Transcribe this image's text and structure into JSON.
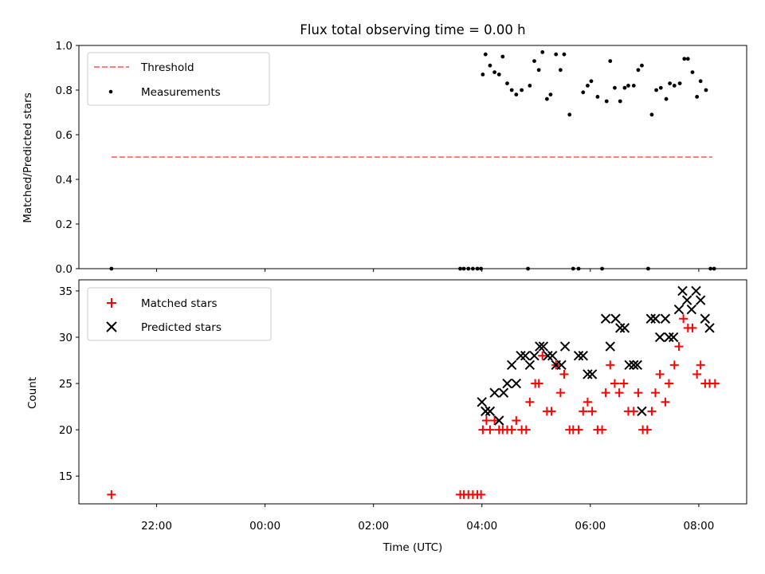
{
  "chart_data": [
    {
      "type": "scatter",
      "title": "Flux total observing time = 0.00 h",
      "ylabel": "Matched/Predicted stars",
      "xlabel": "",
      "ylim": [
        0,
        1.0
      ],
      "xlim": [
        "20:34",
        "08:53"
      ],
      "yticks": [
        0.0,
        0.2,
        0.4,
        0.6,
        0.8,
        1.0
      ],
      "ytick_labels": [
        "0.0",
        "0.2",
        "0.4",
        "0.6",
        "0.8",
        "1.0"
      ],
      "legend_position": "top-left",
      "threshold": {
        "name": "Threshold",
        "value": 0.5,
        "x_range": [
          "21:10",
          "08:15"
        ],
        "color": "#ff7f7f",
        "style": "dashed"
      },
      "series": [
        {
          "name": "Measurements",
          "color": "#000000",
          "marker": "dot",
          "points": [
            [
              "21:10",
              0.0
            ],
            [
              "03:36",
              0.0
            ],
            [
              "03:40",
              0.0
            ],
            [
              "03:45",
              0.0
            ],
            [
              "03:50",
              0.0
            ],
            [
              "03:55",
              0.0
            ],
            [
              "03:59",
              0.0
            ],
            [
              "04:01",
              0.87
            ],
            [
              "04:04",
              0.96
            ],
            [
              "04:09",
              0.91
            ],
            [
              "04:14",
              0.88
            ],
            [
              "04:19",
              0.87
            ],
            [
              "04:23",
              0.95
            ],
            [
              "04:28",
              0.83
            ],
            [
              "04:33",
              0.8
            ],
            [
              "04:38",
              0.78
            ],
            [
              "04:44",
              0.8
            ],
            [
              "04:51",
              0.0
            ],
            [
              "04:53",
              0.82
            ],
            [
              "04:58",
              0.93
            ],
            [
              "05:03",
              0.89
            ],
            [
              "05:07",
              0.97
            ],
            [
              "05:12",
              0.76
            ],
            [
              "05:16",
              0.78
            ],
            [
              "05:22",
              0.96
            ],
            [
              "05:27",
              0.89
            ],
            [
              "05:31",
              0.96
            ],
            [
              "05:37",
              0.69
            ],
            [
              "05:41",
              0.0
            ],
            [
              "05:47",
              0.0
            ],
            [
              "05:52",
              0.79
            ],
            [
              "05:57",
              0.82
            ],
            [
              "06:01",
              0.84
            ],
            [
              "06:08",
              0.77
            ],
            [
              "06:13",
              0.0
            ],
            [
              "06:18",
              0.75
            ],
            [
              "06:22",
              0.93
            ],
            [
              "06:27",
              0.81
            ],
            [
              "06:33",
              0.75
            ],
            [
              "06:38",
              0.81
            ],
            [
              "06:42",
              0.82
            ],
            [
              "06:48",
              0.82
            ],
            [
              "06:53",
              0.89
            ],
            [
              "06:57",
              0.91
            ],
            [
              "07:04",
              0.0
            ],
            [
              "07:08",
              0.69
            ],
            [
              "07:13",
              0.8
            ],
            [
              "07:18",
              0.81
            ],
            [
              "07:24",
              0.76
            ],
            [
              "07:28",
              0.83
            ],
            [
              "07:33",
              0.82
            ],
            [
              "07:39",
              0.83
            ],
            [
              "07:44",
              0.94
            ],
            [
              "07:48",
              0.94
            ],
            [
              "07:53",
              0.88
            ],
            [
              "07:58",
              0.77
            ],
            [
              "08:02",
              0.84
            ],
            [
              "08:08",
              0.8
            ],
            [
              "08:13",
              0.0
            ],
            [
              "08:17",
              0.0
            ]
          ]
        }
      ]
    },
    {
      "type": "scatter",
      "title": "",
      "ylabel": "Count",
      "xlabel": "Time (UTC)",
      "ylim": [
        12,
        36.2
      ],
      "xlim": [
        "20:34",
        "08:53"
      ],
      "yticks": [
        15,
        20,
        25,
        30,
        35
      ],
      "ytick_labels": [
        "15",
        "20",
        "25",
        "30",
        "35"
      ],
      "xticks": [
        "22:00",
        "00:00",
        "02:00",
        "04:00",
        "06:00",
        "08:00"
      ],
      "xtick_labels": [
        "22:00",
        "00:00",
        "02:00",
        "04:00",
        "06:00",
        "08:00"
      ],
      "legend_position": "top-left",
      "series": [
        {
          "name": "Matched stars",
          "color": "#ff0000",
          "marker": "plus",
          "points": [
            [
              "21:10",
              13
            ],
            [
              "03:36",
              13
            ],
            [
              "03:40",
              13
            ],
            [
              "03:45",
              13
            ],
            [
              "03:50",
              13
            ],
            [
              "03:55",
              13
            ],
            [
              "03:59",
              13
            ],
            [
              "04:01",
              20
            ],
            [
              "04:05",
              21
            ],
            [
              "04:09",
              20
            ],
            [
              "04:14",
              21
            ],
            [
              "04:19",
              20
            ],
            [
              "04:23",
              20
            ],
            [
              "04:28",
              20
            ],
            [
              "04:33",
              20
            ],
            [
              "04:38",
              21
            ],
            [
              "04:44",
              20
            ],
            [
              "04:49",
              20
            ],
            [
              "04:53",
              23
            ],
            [
              "04:59",
              25
            ],
            [
              "05:03",
              25
            ],
            [
              "05:07",
              28
            ],
            [
              "05:12",
              22
            ],
            [
              "05:17",
              22
            ],
            [
              "05:22",
              27
            ],
            [
              "05:27",
              24
            ],
            [
              "05:31",
              26
            ],
            [
              "05:37",
              20
            ],
            [
              "05:41",
              20
            ],
            [
              "05:47",
              20
            ],
            [
              "05:52",
              22
            ],
            [
              "05:57",
              23
            ],
            [
              "06:02",
              22
            ],
            [
              "06:08",
              20
            ],
            [
              "06:13",
              20
            ],
            [
              "06:17",
              24
            ],
            [
              "06:22",
              27
            ],
            [
              "06:27",
              25
            ],
            [
              "06:32",
              24
            ],
            [
              "06:37",
              25
            ],
            [
              "06:42",
              22
            ],
            [
              "06:48",
              22
            ],
            [
              "06:53",
              24
            ],
            [
              "06:58",
              20
            ],
            [
              "07:03",
              20
            ],
            [
              "07:08",
              22
            ],
            [
              "07:12",
              24
            ],
            [
              "07:17",
              26
            ],
            [
              "07:23",
              23
            ],
            [
              "07:27",
              25
            ],
            [
              "07:33",
              27
            ],
            [
              "07:38",
              29
            ],
            [
              "07:43",
              32
            ],
            [
              "07:48",
              31
            ],
            [
              "07:53",
              31
            ],
            [
              "07:58",
              26
            ],
            [
              "08:02",
              27
            ],
            [
              "08:07",
              25
            ],
            [
              "08:12",
              25
            ],
            [
              "08:18",
              25
            ]
          ]
        },
        {
          "name": "Predicted stars",
          "color": "#000000",
          "marker": "x",
          "points": [
            [
              "04:00",
              23
            ],
            [
              "04:04",
              22
            ],
            [
              "04:09",
              22
            ],
            [
              "04:14",
              24
            ],
            [
              "04:19",
              21
            ],
            [
              "04:24",
              24
            ],
            [
              "04:28",
              25
            ],
            [
              "04:33",
              27
            ],
            [
              "04:38",
              25
            ],
            [
              "04:43",
              28
            ],
            [
              "04:48",
              28
            ],
            [
              "04:53",
              27
            ],
            [
              "04:58",
              28
            ],
            [
              "05:04",
              29
            ],
            [
              "05:08",
              29
            ],
            [
              "05:13",
              28
            ],
            [
              "05:18",
              28
            ],
            [
              "05:22",
              27
            ],
            [
              "05:28",
              27
            ],
            [
              "05:32",
              29
            ],
            [
              "05:47",
              28
            ],
            [
              "05:52",
              28
            ],
            [
              "05:57",
              26
            ],
            [
              "06:02",
              26
            ],
            [
              "06:17",
              32
            ],
            [
              "06:22",
              29
            ],
            [
              "06:28",
              32
            ],
            [
              "06:33",
              31
            ],
            [
              "06:38",
              31
            ],
            [
              "06:43",
              27
            ],
            [
              "06:48",
              27
            ],
            [
              "06:52",
              27
            ],
            [
              "06:57",
              22
            ],
            [
              "07:07",
              32
            ],
            [
              "07:12",
              32
            ],
            [
              "07:17",
              30
            ],
            [
              "07:23",
              32
            ],
            [
              "07:27",
              30
            ],
            [
              "07:32",
              30
            ],
            [
              "07:38",
              33
            ],
            [
              "07:42",
              35
            ],
            [
              "07:47",
              34
            ],
            [
              "07:52",
              33
            ],
            [
              "07:57",
              35
            ],
            [
              "08:02",
              34
            ],
            [
              "08:07",
              32
            ],
            [
              "08:12",
              31
            ]
          ]
        }
      ]
    }
  ]
}
